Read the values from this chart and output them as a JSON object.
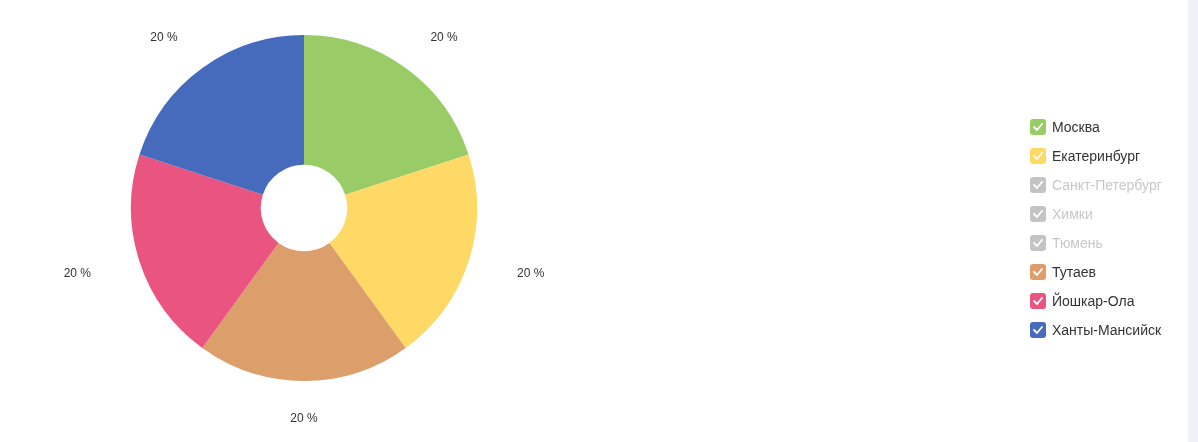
{
  "chart_data": {
    "type": "donut",
    "categories": [
      "Москва",
      "Екатеринбург",
      "Санкт-Петербург",
      "Химки",
      "Тюмень",
      "Тутаев",
      "Йошкар-Ола",
      "Ханты-Мансийск"
    ],
    "values": [
      20,
      20,
      null,
      null,
      null,
      20,
      20,
      20
    ],
    "value_labels": [
      "20 %",
      "20 %",
      null,
      null,
      null,
      "20 %",
      "20 %",
      "20 %"
    ],
    "colors": [
      "#99cc66",
      "#ffd966",
      "#c4c4c4",
      "#c4c4c4",
      "#c4c4c4",
      "#dc9e6a",
      "#e95480",
      "#466bbd"
    ],
    "legend": "right"
  }
}
